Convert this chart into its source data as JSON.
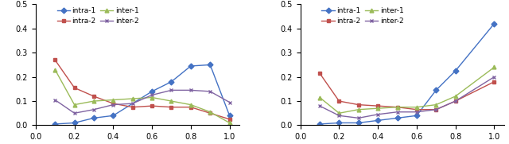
{
  "x_full": [
    0.1,
    0.2,
    0.3,
    0.4,
    0.5,
    0.6,
    0.7,
    0.8,
    0.9,
    1.0
  ],
  "left": {
    "intra1_x": [
      0.1,
      0.2,
      0.3,
      0.4,
      0.6,
      0.7,
      0.8,
      0.9,
      1.0
    ],
    "intra1_y": [
      0.005,
      0.01,
      0.03,
      0.04,
      0.14,
      0.18,
      0.245,
      0.25,
      0.04
    ],
    "intra2_x": [
      0.1,
      0.2,
      0.3,
      0.4,
      0.5,
      0.6,
      0.7,
      0.8,
      0.9,
      1.0
    ],
    "intra2_y": [
      0.27,
      0.155,
      0.12,
      0.09,
      0.075,
      0.08,
      0.075,
      0.075,
      0.05,
      0.025
    ],
    "inter1_x": [
      0.1,
      0.2,
      0.3,
      0.4,
      0.5,
      0.6,
      0.7,
      0.8,
      0.9,
      1.0
    ],
    "inter1_y": [
      0.23,
      0.085,
      0.1,
      0.105,
      0.11,
      0.115,
      0.1,
      0.085,
      0.055,
      0.01
    ],
    "inter2_x": [
      0.1,
      0.2,
      0.3,
      0.4,
      0.5,
      0.6,
      0.7,
      0.8,
      0.9,
      1.0
    ],
    "inter2_y": [
      0.105,
      0.05,
      0.065,
      0.085,
      0.09,
      0.125,
      0.145,
      0.145,
      0.14,
      0.095
    ]
  },
  "right": {
    "intra1_x": [
      0.1,
      0.2,
      0.3,
      0.4,
      0.5,
      0.6,
      0.7,
      0.8,
      1.0
    ],
    "intra1_y": [
      0.005,
      0.01,
      0.01,
      0.02,
      0.03,
      0.04,
      0.145,
      0.225,
      0.42
    ],
    "intra2_x": [
      0.1,
      0.2,
      0.3,
      0.4,
      0.5,
      0.6,
      0.7,
      0.8,
      1.0
    ],
    "intra2_y": [
      0.215,
      0.1,
      0.085,
      0.08,
      0.075,
      0.065,
      0.065,
      0.1,
      0.18
    ],
    "inter1_x": [
      0.1,
      0.2,
      0.3,
      0.4,
      0.5,
      0.6,
      0.7,
      0.8,
      1.0
    ],
    "inter1_y": [
      0.115,
      0.05,
      0.065,
      0.07,
      0.075,
      0.075,
      0.085,
      0.12,
      0.24
    ],
    "inter2_x": [
      0.1,
      0.2,
      0.3,
      0.4,
      0.5,
      0.6,
      0.7,
      0.8,
      1.0
    ],
    "inter2_y": [
      0.08,
      0.04,
      0.03,
      0.045,
      0.055,
      0.055,
      0.065,
      0.1,
      0.2
    ]
  },
  "colors": {
    "intra1": "#4472C4",
    "intra2": "#C0504D",
    "inter1": "#9BBB59",
    "inter2": "#8064A2"
  },
  "ylim": [
    0,
    0.5
  ],
  "xlim": [
    0,
    1.05
  ],
  "xticks": [
    0,
    0.2,
    0.4,
    0.6,
    0.8,
    1.0
  ],
  "yticks": [
    0,
    0.1,
    0.2,
    0.3,
    0.4,
    0.5
  ]
}
